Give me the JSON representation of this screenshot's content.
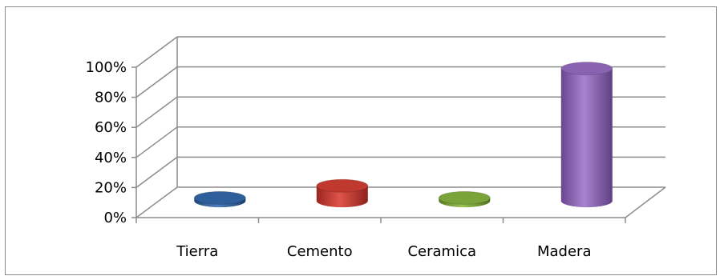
{
  "chart_data": {
    "type": "bar",
    "style": "3d-cylinder",
    "categories": [
      "Tierra",
      "Cemento",
      "Ceramica",
      "Madera"
    ],
    "series": [
      {
        "values": [
          2,
          10,
          2,
          88
        ]
      }
    ],
    "colors": [
      "#2f5f9a",
      "#c0392f",
      "#7aa33a",
      "#8a63b0"
    ],
    "ylim": [
      0,
      100
    ],
    "yticks": [
      "0%",
      "20%",
      "40%",
      "60%",
      "80%",
      "100%"
    ],
    "ytick_values": [
      0,
      20,
      40,
      60,
      80,
      100
    ],
    "grid": true,
    "legend": "none"
  }
}
